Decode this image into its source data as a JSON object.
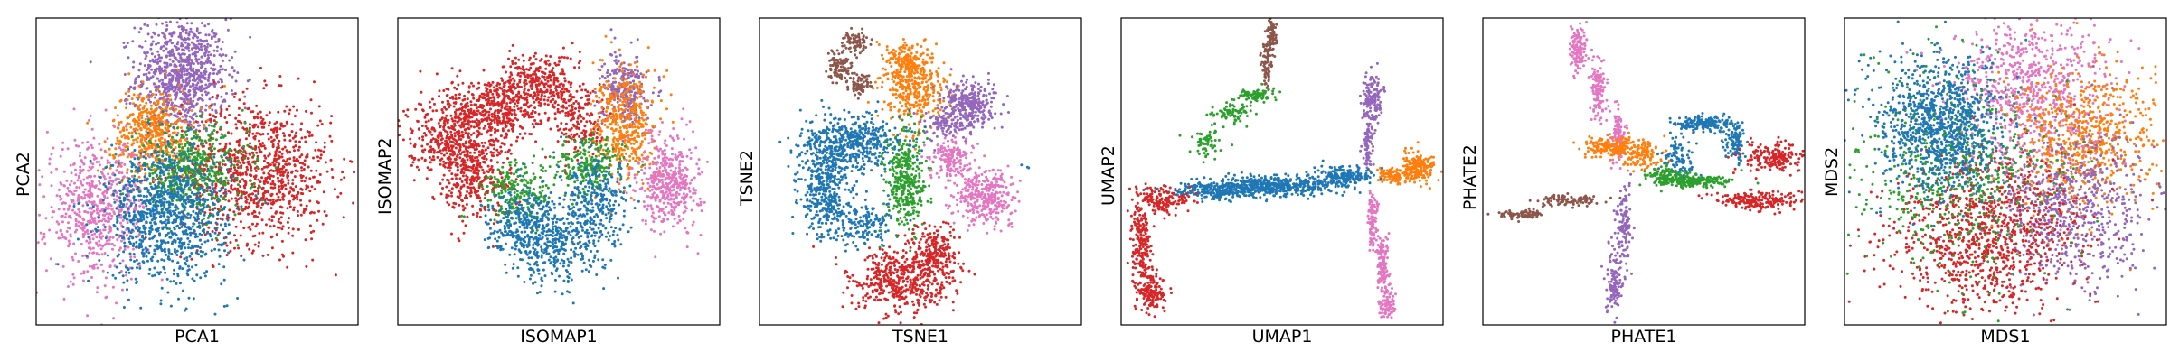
{
  "chart_data": [
    {
      "type": "scatter",
      "xlabel": "PCA1",
      "ylabel": "PCA2",
      "grid": false,
      "xlim": [
        -3.2,
        3.2
      ],
      "ylim": [
        -3.0,
        3.4
      ],
      "series": [
        {
          "color": "#9467bd",
          "clusters": [
            {
              "cx": -0.3,
              "cy": 2.2,
              "sx": 0.45,
              "sy": 0.6,
              "n": 900
            }
          ]
        },
        {
          "color": "#d62728",
          "clusters": [
            {
              "cx": 1.2,
              "cy": 0.2,
              "sx": 0.75,
              "sy": 0.75,
              "n": 1000
            }
          ]
        },
        {
          "color": "#ff7f0e",
          "clusters": [
            {
              "cx": -0.9,
              "cy": 1.0,
              "sx": 0.4,
              "sy": 0.45,
              "n": 500
            }
          ]
        },
        {
          "color": "#2ca02c",
          "clusters": [
            {
              "cx": -0.1,
              "cy": 0.2,
              "sx": 0.55,
              "sy": 0.45,
              "n": 500
            }
          ]
        },
        {
          "color": "#e377c2",
          "clusters": [
            {
              "cx": -2.0,
              "cy": -0.6,
              "sx": 0.5,
              "sy": 0.7,
              "n": 650
            }
          ]
        },
        {
          "color": "#1f77b4",
          "clusters": [
            {
              "cx": -0.6,
              "cy": -0.7,
              "sx": 0.6,
              "sy": 0.7,
              "n": 1000
            }
          ]
        }
      ]
    },
    {
      "type": "scatter",
      "xlabel": "ISOMAP1",
      "ylabel": "ISOMAP2",
      "grid": false,
      "xlim": [
        -3.2,
        3.2
      ],
      "ylim": [
        -3.0,
        3.0
      ],
      "series": [
        {
          "color": "#d62728",
          "clusters": [
            {
              "cx": -1.3,
              "cy": 1.2,
              "sx": 0.45,
              "sy": 0.35,
              "n": 450
            },
            {
              "cx": -2.2,
              "cy": 0.7,
              "sx": 0.4,
              "sy": 0.35,
              "n": 350
            },
            {
              "cx": -1.7,
              "cy": -0.1,
              "sx": 0.4,
              "sy": 0.4,
              "n": 350
            },
            {
              "cx": -0.4,
              "cy": 1.7,
              "sx": 0.35,
              "sy": 0.3,
              "n": 300
            },
            {
              "cx": 0.4,
              "cy": 1.0,
              "sx": 0.3,
              "sy": 0.4,
              "n": 200
            }
          ]
        },
        {
          "color": "#9467bd",
          "clusters": [
            {
              "cx": 1.3,
              "cy": 1.6,
              "sx": 0.22,
              "sy": 0.35,
              "n": 300
            }
          ]
        },
        {
          "color": "#ff7f0e",
          "clusters": [
            {
              "cx": 1.3,
              "cy": 0.9,
              "sx": 0.3,
              "sy": 0.55,
              "n": 450
            }
          ]
        },
        {
          "color": "#e377c2",
          "clusters": [
            {
              "cx": 2.2,
              "cy": -0.2,
              "sx": 0.3,
              "sy": 0.45,
              "n": 450
            }
          ]
        },
        {
          "color": "#2ca02c",
          "clusters": [
            {
              "cx": -0.8,
              "cy": -0.4,
              "sx": 0.35,
              "sy": 0.3,
              "n": 220
            },
            {
              "cx": 0.6,
              "cy": 0.1,
              "sx": 0.35,
              "sy": 0.3,
              "n": 220
            }
          ]
        },
        {
          "color": "#1f77b4",
          "clusters": [
            {
              "cx": -0.1,
              "cy": -1.4,
              "sx": 0.5,
              "sy": 0.4,
              "n": 450
            },
            {
              "cx": 0.8,
              "cy": -0.6,
              "sx": 0.35,
              "sy": 0.4,
              "n": 250
            },
            {
              "cx": -0.8,
              "cy": -0.9,
              "sx": 0.3,
              "sy": 0.3,
              "n": 200
            }
          ]
        }
      ]
    },
    {
      "type": "scatter",
      "xlabel": "TSNE1",
      "ylabel": "TSNE2",
      "grid": false,
      "xlim": [
        -3.2,
        3.2
      ],
      "ylim": [
        -3.2,
        3.2
      ],
      "series": [
        {
          "color": "#8c564b",
          "clusters": [
            {
              "cx": -1.3,
              "cy": 2.7,
              "sx": 0.12,
              "sy": 0.12,
              "n": 80
            },
            {
              "cx": -1.6,
              "cy": 2.2,
              "sx": 0.12,
              "sy": 0.18,
              "n": 100
            },
            {
              "cx": -1.2,
              "cy": 1.8,
              "sx": 0.12,
              "sy": 0.1,
              "n": 80
            }
          ]
        },
        {
          "color": "#ff7f0e",
          "clusters": [
            {
              "cx": -0.1,
              "cy": 1.7,
              "sx": 0.3,
              "sy": 0.4,
              "n": 350
            },
            {
              "cx": -0.3,
              "cy": 2.3,
              "sx": 0.2,
              "sy": 0.2,
              "n": 150
            }
          ]
        },
        {
          "color": "#9467bd",
          "clusters": [
            {
              "cx": 1.0,
              "cy": 1.4,
              "sx": 0.25,
              "sy": 0.25,
              "n": 300
            },
            {
              "cx": 0.5,
              "cy": 1.0,
              "sx": 0.2,
              "sy": 0.15,
              "n": 100
            }
          ]
        },
        {
          "color": "#1f77b4",
          "clusters": [
            {
              "cx": -1.3,
              "cy": 0.6,
              "sx": 0.5,
              "sy": 0.3,
              "n": 450
            },
            {
              "cx": -1.9,
              "cy": -0.3,
              "sx": 0.25,
              "sy": 0.55,
              "n": 450
            },
            {
              "cx": -1.1,
              "cy": -1.1,
              "sx": 0.3,
              "sy": 0.2,
              "n": 150
            },
            {
              "cx": 2.1,
              "cy": 0.1,
              "sx": 0.04,
              "sy": 0.04,
              "n": 3
            }
          ]
        },
        {
          "color": "#2ca02c",
          "clusters": [
            {
              "cx": -0.3,
              "cy": -0.2,
              "sx": 0.2,
              "sy": 0.5,
              "n": 350
            }
          ]
        },
        {
          "color": "#e377c2",
          "clusters": [
            {
              "cx": 0.6,
              "cy": 0.3,
              "sx": 0.2,
              "sy": 0.2,
              "n": 150
            },
            {
              "cx": 1.3,
              "cy": -0.5,
              "sx": 0.3,
              "sy": 0.3,
              "n": 350
            }
          ]
        },
        {
          "color": "#d62728",
          "clusters": [
            {
              "cx": -0.4,
              "cy": -2.3,
              "sx": 0.5,
              "sy": 0.35,
              "n": 500
            },
            {
              "cx": 0.3,
              "cy": -1.7,
              "sx": 0.25,
              "sy": 0.3,
              "n": 200
            }
          ]
        }
      ]
    },
    {
      "type": "scatter",
      "xlabel": "UMAP1",
      "ylabel": "UMAP2",
      "grid": false,
      "xlim": [
        -3.2,
        3.2
      ],
      "ylim": [
        -3.2,
        3.2
      ],
      "series": [
        {
          "color": "#8c564b",
          "clusters": [
            {
              "cx": -0.2,
              "cy": 2.8,
              "sx": 0.04,
              "sy": 0.2,
              "n": 80
            },
            {
              "cx": -0.3,
              "cy": 2.2,
              "sx": 0.05,
              "sy": 0.25,
              "n": 80
            }
          ]
        },
        {
          "color": "#2ca02c",
          "clusters": [
            {
              "cx": -0.5,
              "cy": 1.6,
              "sx": 0.2,
              "sy": 0.08,
              "n": 80
            },
            {
              "cx": -1.0,
              "cy": 1.2,
              "sx": 0.2,
              "sy": 0.1,
              "n": 80
            },
            {
              "cx": -1.5,
              "cy": 0.6,
              "sx": 0.15,
              "sy": 0.15,
              "n": 60
            }
          ]
        },
        {
          "color": "#9467bd",
          "clusters": [
            {
              "cx": 1.8,
              "cy": 1.5,
              "sx": 0.1,
              "sy": 0.3,
              "n": 150
            },
            {
              "cx": 1.7,
              "cy": 0.6,
              "sx": 0.05,
              "sy": 0.3,
              "n": 80
            }
          ]
        },
        {
          "color": "#ff7f0e",
          "clusters": [
            {
              "cx": 2.7,
              "cy": 0.1,
              "sx": 0.18,
              "sy": 0.15,
              "n": 200
            },
            {
              "cx": 2.2,
              "cy": -0.1,
              "sx": 0.15,
              "sy": 0.08,
              "n": 100
            }
          ]
        },
        {
          "color": "#1f77b4",
          "clusters": [
            {
              "cx": -0.1,
              "cy": -0.3,
              "sx": 0.6,
              "sy": 0.1,
              "n": 450
            },
            {
              "cx": -1.3,
              "cy": -0.4,
              "sx": 0.4,
              "sy": 0.08,
              "n": 250
            },
            {
              "cx": 1.2,
              "cy": -0.1,
              "sx": 0.3,
              "sy": 0.1,
              "n": 200
            }
          ]
        },
        {
          "color": "#d62728",
          "clusters": [
            {
              "cx": -2.4,
              "cy": -0.6,
              "sx": 0.25,
              "sy": 0.15,
              "n": 150
            },
            {
              "cx": -2.8,
              "cy": -1.5,
              "sx": 0.1,
              "sy": 0.4,
              "n": 200
            },
            {
              "cx": -2.6,
              "cy": -2.5,
              "sx": 0.15,
              "sy": 0.2,
              "n": 150
            }
          ]
        },
        {
          "color": "#e377c2",
          "clusters": [
            {
              "cx": 1.8,
              "cy": -1.0,
              "sx": 0.05,
              "sy": 0.3,
              "n": 100
            },
            {
              "cx": 2.0,
              "cy": -2.0,
              "sx": 0.06,
              "sy": 0.35,
              "n": 150
            },
            {
              "cx": 2.1,
              "cy": -2.8,
              "sx": 0.08,
              "sy": 0.15,
              "n": 80
            }
          ]
        }
      ]
    },
    {
      "type": "scatter",
      "xlabel": "PHATE1",
      "ylabel": "PHATE2",
      "grid": false,
      "xlim": [
        -3.2,
        3.2
      ],
      "ylim": [
        -3.2,
        3.2
      ],
      "series": [
        {
          "color": "#e377c2",
          "clusters": [
            {
              "cx": -1.3,
              "cy": 2.6,
              "sx": 0.08,
              "sy": 0.25,
              "n": 120
            },
            {
              "cx": -0.9,
              "cy": 1.7,
              "sx": 0.08,
              "sy": 0.3,
              "n": 120
            },
            {
              "cx": -0.5,
              "cy": 0.8,
              "sx": 0.08,
              "sy": 0.3,
              "n": 100
            }
          ]
        },
        {
          "color": "#ff7f0e",
          "clusters": [
            {
              "cx": -0.6,
              "cy": 0.5,
              "sx": 0.3,
              "sy": 0.1,
              "n": 200
            },
            {
              "cx": 0.0,
              "cy": 0.3,
              "sx": 0.2,
              "sy": 0.15,
              "n": 100
            }
          ]
        },
        {
          "color": "#8c564b",
          "clusters": [
            {
              "cx": -1.5,
              "cy": -0.6,
              "sx": 0.3,
              "sy": 0.06,
              "n": 100
            },
            {
              "cx": -2.5,
              "cy": -0.9,
              "sx": 0.25,
              "sy": 0.05,
              "n": 80
            }
          ]
        },
        {
          "color": "#1f77b4",
          "clusters": [
            {
              "cx": 1.2,
              "cy": 1.0,
              "sx": 0.3,
              "sy": 0.08,
              "n": 200
            },
            {
              "cx": 0.7,
              "cy": 0.3,
              "sx": 0.15,
              "sy": 0.2,
              "n": 100
            },
            {
              "cx": 1.8,
              "cy": 0.6,
              "sx": 0.1,
              "sy": 0.2,
              "n": 100
            }
          ]
        },
        {
          "color": "#2ca02c",
          "clusters": [
            {
              "cx": 1.0,
              "cy": -0.2,
              "sx": 0.3,
              "sy": 0.07,
              "n": 200
            },
            {
              "cx": 0.4,
              "cy": -0.1,
              "sx": 0.2,
              "sy": 0.1,
              "n": 100
            }
          ]
        },
        {
          "color": "#d62728",
          "clusters": [
            {
              "cx": 2.6,
              "cy": 0.3,
              "sx": 0.3,
              "sy": 0.15,
              "n": 200
            },
            {
              "cx": 2.2,
              "cy": -0.6,
              "sx": 0.4,
              "sy": 0.1,
              "n": 200
            }
          ]
        },
        {
          "color": "#9467bd",
          "clusters": [
            {
              "cx": -0.4,
              "cy": -1.2,
              "sx": 0.08,
              "sy": 0.4,
              "n": 120
            },
            {
              "cx": -0.6,
              "cy": -2.3,
              "sx": 0.08,
              "sy": 0.4,
              "n": 120
            }
          ]
        }
      ]
    },
    {
      "type": "scatter",
      "xlabel": "MDS1",
      "ylabel": "MDS2",
      "grid": false,
      "xlim": [
        -3.2,
        3.2
      ],
      "ylim": [
        -3.2,
        3.2
      ],
      "series": [
        {
          "color": "#e377c2",
          "clusters": [
            {
              "cx": 0.5,
              "cy": 1.6,
              "sx": 0.8,
              "sy": 0.8,
              "n": 800
            }
          ]
        },
        {
          "color": "#ff7f0e",
          "clusters": [
            {
              "cx": 1.5,
              "cy": 0.6,
              "sx": 0.7,
              "sy": 0.8,
              "n": 700
            }
          ]
        },
        {
          "color": "#9467bd",
          "clusters": [
            {
              "cx": 1.3,
              "cy": -0.8,
              "sx": 0.8,
              "sy": 0.8,
              "n": 700
            }
          ]
        },
        {
          "color": "#d62728",
          "clusters": [
            {
              "cx": -0.4,
              "cy": -1.3,
              "sx": 0.9,
              "sy": 0.8,
              "n": 1000
            }
          ]
        },
        {
          "color": "#2ca02c",
          "clusters": [
            {
              "cx": -1.0,
              "cy": 0.0,
              "sx": 1.0,
              "sy": 1.0,
              "n": 600
            }
          ]
        },
        {
          "color": "#1f77b4",
          "clusters": [
            {
              "cx": -1.3,
              "cy": 1.0,
              "sx": 0.6,
              "sy": 0.7,
              "n": 1000
            }
          ]
        }
      ]
    }
  ]
}
